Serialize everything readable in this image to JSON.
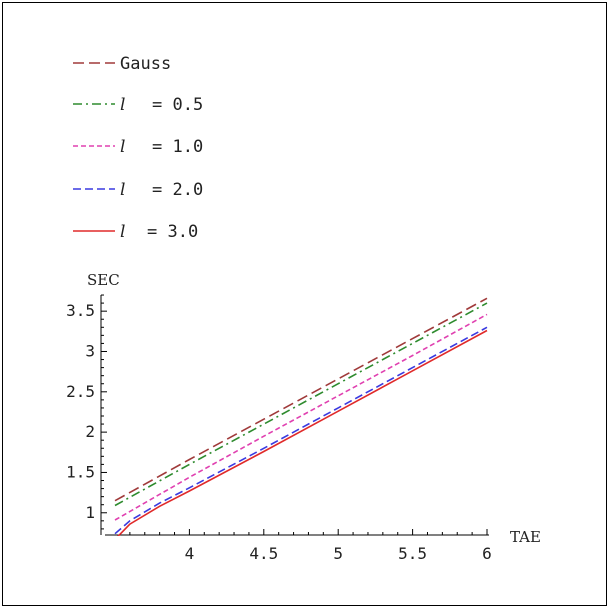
{
  "chart_data": {
    "type": "line",
    "xlabel": "TAE",
    "ylabel": "SEC",
    "xlim": [
      3.5,
      6.0
    ],
    "ylim": [
      0.65,
      3.75
    ],
    "x_ticks": [
      4,
      4.5,
      5,
      5.5,
      6
    ],
    "x_tick_labels": [
      "4",
      "4.5",
      "5",
      "5.5",
      "6"
    ],
    "y_ticks": [
      1,
      1.5,
      2,
      2.5,
      3,
      3.5
    ],
    "y_tick_labels": [
      "1",
      "1.5",
      "2",
      "2.5",
      "3",
      "3.5"
    ],
    "legend_position": "top-left",
    "series": [
      {
        "name": "Gauss",
        "legend_parts": [
          "Gauss"
        ],
        "color": "#a03a3a",
        "dash": "long-dash",
        "x": [
          3.5,
          4.0,
          4.5,
          5.0,
          5.5,
          6.0
        ],
        "y": [
          1.15,
          1.66,
          2.16,
          2.66,
          3.16,
          3.66
        ]
      },
      {
        "name": "l = 0.5",
        "legend_parts": [
          "l",
          "= 0.5"
        ],
        "color": "#2e8b2e",
        "dash": "dash-dot",
        "x": [
          3.5,
          4.0,
          4.5,
          5.0,
          5.5,
          6.0
        ],
        "y": [
          1.09,
          1.6,
          2.1,
          2.6,
          3.1,
          3.6
        ]
      },
      {
        "name": "l = 1.0",
        "legend_parts": [
          "l",
          "= 1.0"
        ],
        "color": "#e040b0",
        "dash": "short-dash",
        "x": [
          3.5,
          4.0,
          4.5,
          5.0,
          5.5,
          6.0
        ],
        "y": [
          0.91,
          1.44,
          1.95,
          2.45,
          2.95,
          3.46
        ]
      },
      {
        "name": "l = 2.0",
        "legend_parts": [
          "l",
          "= 2.0"
        ],
        "color": "#3a3ae0",
        "dash": "medium-dash",
        "x": [
          3.5,
          3.6,
          3.8,
          4.0,
          4.5,
          5.0,
          5.5,
          6.0
        ],
        "y": [
          0.74,
          0.9,
          1.12,
          1.31,
          1.8,
          2.3,
          2.8,
          3.3
        ]
      },
      {
        "name": "l = 3.0",
        "legend_parts": [
          "l",
          "= 3.0"
        ],
        "color": "#e02a2a",
        "dash": "solid",
        "x": [
          3.5,
          3.6,
          3.8,
          4.0,
          4.5,
          5.0,
          5.5,
          6.0
        ],
        "y": [
          0.67,
          0.86,
          1.08,
          1.27,
          1.76,
          2.26,
          2.76,
          3.26
        ]
      }
    ]
  }
}
